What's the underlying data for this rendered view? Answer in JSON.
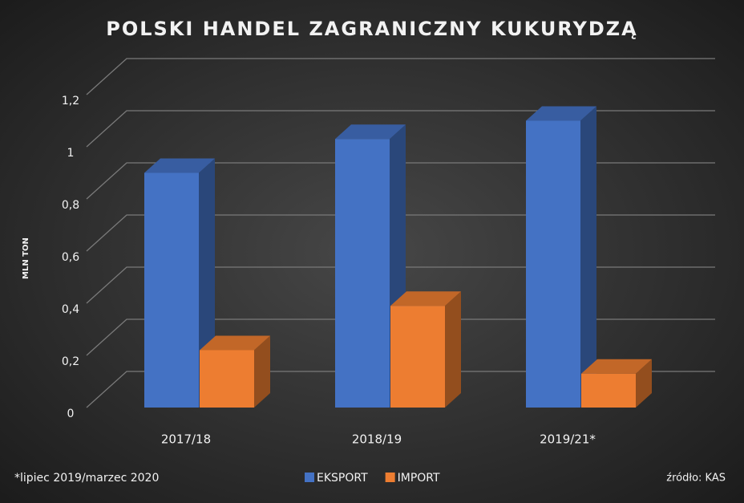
{
  "chart_data": {
    "type": "bar3d",
    "title": "POLSKI HANDEL ZAGRANICZNY KUKURYDZĄ",
    "y_label": "MLN TON",
    "categories": [
      "2017/18",
      "2018/19",
      "2019/21*"
    ],
    "series": [
      {
        "name": "EKSPORT",
        "color": "#4472c4",
        "values": [
          0.9,
          1.03,
          1.1
        ]
      },
      {
        "name": "IMPORT",
        "color": "#ed7d31",
        "values": [
          0.22,
          0.39,
          0.13
        ]
      }
    ],
    "ylim": [
      0,
      1.2
    ],
    "yticks": [
      0,
      {
        "value": 0.2,
        "label": "0,2"
      },
      {
        "value": 0.4,
        "label": "0,4"
      },
      {
        "value": 0.6,
        "label": "0,6"
      },
      {
        "value": 0.8,
        "label": "0,8"
      },
      1,
      {
        "value": 1.2,
        "label": "1,2"
      }
    ],
    "grid": true,
    "footnote": "*lipiec 2019/marzec 2020",
    "source": "źródło: KAS"
  }
}
